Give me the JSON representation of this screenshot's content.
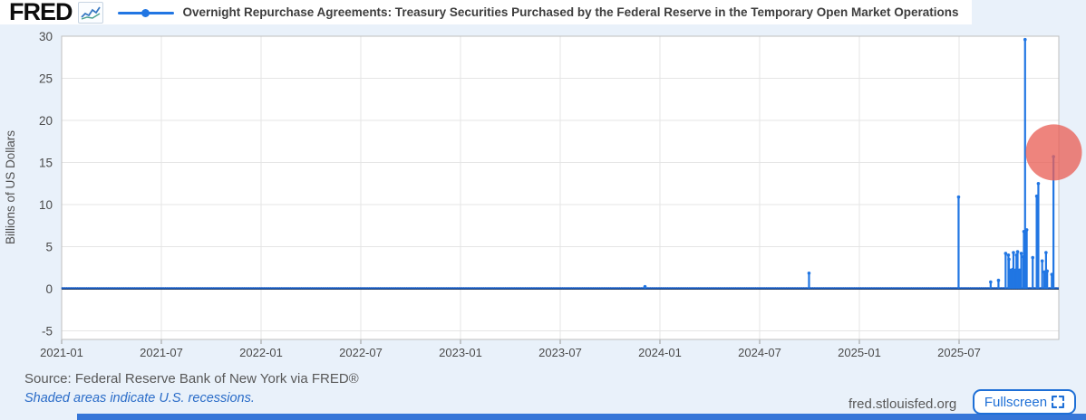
{
  "header": {
    "logo_text": "FRED",
    "legend_label": "Overnight Repurchase Agreements: Treasury Securities Purchased by the Federal Reserve in the Temporary Open Market Operations"
  },
  "footer": {
    "source_text": "Source: Federal Reserve Bank of New York via FRED®",
    "recession_note": "Shaded areas indicate U.S. recessions.",
    "site_url": "fred.stlouisfed.org",
    "fullscreen_label": "Fullscreen"
  },
  "colors": {
    "series_blue": "#2176e3",
    "zero_line": "#1a1a1a",
    "grid": "#e5e5e5",
    "plot_border": "#bfbfbf",
    "tick_text": "#4a4a4a",
    "click_highlight": "rgba(233,97,89,0.78)",
    "background": "#e9f1fa"
  },
  "chart_data": {
    "type": "line",
    "title": "Overnight Repurchase Agreements: Treasury Securities Purchased by the Federal Reserve in the Temporary Open Market Operations",
    "xlabel": "",
    "ylabel": "Billions of US Dollars",
    "ylim": [
      -6,
      30
    ],
    "y_ticks": [
      -5,
      0,
      5,
      10,
      15,
      20,
      25,
      30
    ],
    "x_domain_months": 60,
    "x_start": "2021-01",
    "x_ticks": [
      {
        "label": "2021-01",
        "m": 0
      },
      {
        "label": "2021-07",
        "m": 6
      },
      {
        "label": "2022-01",
        "m": 12
      },
      {
        "label": "2022-07",
        "m": 18
      },
      {
        "label": "2023-01",
        "m": 24
      },
      {
        "label": "2023-07",
        "m": 30
      },
      {
        "label": "2024-01",
        "m": 36
      },
      {
        "label": "2024-07",
        "m": 42
      },
      {
        "label": "2025-01",
        "m": 48
      },
      {
        "label": "2025-07",
        "m": 54
      }
    ],
    "grid": true,
    "legend_position": "top",
    "baseline_value": 0.07,
    "baseline_note": "near-zero daily operations from 2021-01 through 2025-12",
    "spikes": [
      {
        "date": "2023-12-04",
        "m": 35.1,
        "v": 0.25
      },
      {
        "date": "2024-09-30",
        "m": 44.97,
        "v": 1.85
      },
      {
        "date": "2025-06-30",
        "m": 53.97,
        "v": 10.9
      },
      {
        "date": "2025-08-29",
        "m": 55.9,
        "v": 0.8
      },
      {
        "date": "2025-09-12",
        "m": 56.37,
        "v": 1.0
      },
      {
        "date": "2025-09-25",
        "m": 56.8,
        "v": 4.2
      },
      {
        "date": "2025-09-30",
        "m": 56.97,
        "v": 4.0
      },
      {
        "date": "2025-10-01",
        "m": 57.0,
        "v": 3.5
      },
      {
        "date": "2025-10-02",
        "m": 57.03,
        "v": 2.2
      },
      {
        "date": "2025-10-03",
        "m": 57.06,
        "v": 2.2
      },
      {
        "date": "2025-10-06",
        "m": 57.16,
        "v": 2.2
      },
      {
        "date": "2025-10-07",
        "m": 57.19,
        "v": 2.2
      },
      {
        "date": "2025-10-08",
        "m": 57.23,
        "v": 2.3
      },
      {
        "date": "2025-10-09",
        "m": 57.27,
        "v": 4.3
      },
      {
        "date": "2025-10-10",
        "m": 57.3,
        "v": 2.2
      },
      {
        "date": "2025-10-13",
        "m": 57.39,
        "v": 2.2
      },
      {
        "date": "2025-10-14",
        "m": 57.42,
        "v": 2.2
      },
      {
        "date": "2025-10-15",
        "m": 57.45,
        "v": 4.0
      },
      {
        "date": "2025-10-16",
        "m": 57.48,
        "v": 2.3
      },
      {
        "date": "2025-10-17",
        "m": 57.52,
        "v": 4.4
      },
      {
        "date": "2025-10-20",
        "m": 57.61,
        "v": 2.2
      },
      {
        "date": "2025-10-21",
        "m": 57.65,
        "v": 2.2
      },
      {
        "date": "2025-10-22",
        "m": 57.68,
        "v": 2.2
      },
      {
        "date": "2025-10-24",
        "m": 57.74,
        "v": 4.2
      },
      {
        "date": "2025-10-28",
        "m": 57.87,
        "v": 3.8
      },
      {
        "date": "2025-10-29",
        "m": 57.9,
        "v": 6.8
      },
      {
        "date": "2025-10-31",
        "m": 57.97,
        "v": 29.6
      },
      {
        "date": "2025-11-03",
        "m": 58.07,
        "v": 7.0
      },
      {
        "date": "2025-11-14",
        "m": 58.43,
        "v": 3.7
      },
      {
        "date": "2025-11-21",
        "m": 58.67,
        "v": 11.0
      },
      {
        "date": "2025-11-24",
        "m": 58.77,
        "v": 12.5
      },
      {
        "date": "2025-12-01",
        "m": 59.0,
        "v": 3.3
      },
      {
        "date": "2025-12-05",
        "m": 59.13,
        "v": 2.0
      },
      {
        "date": "2025-12-08",
        "m": 59.23,
        "v": 4.3
      },
      {
        "date": "2025-12-10",
        "m": 59.3,
        "v": 2.1
      },
      {
        "date": "2025-12-19",
        "m": 59.58,
        "v": 1.7
      },
      {
        "date": "2025-12-22",
        "m": 59.68,
        "v": 15.7
      }
    ],
    "click_indicator": {
      "m": 59.7,
      "value": 16.2,
      "radius_px": 31
    }
  }
}
